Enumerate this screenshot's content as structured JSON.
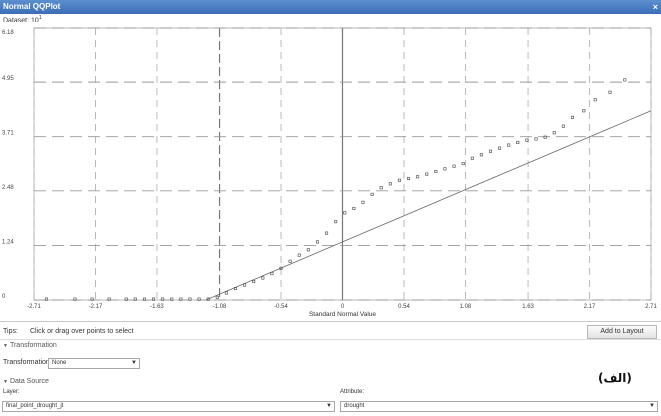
{
  "window": {
    "title": "Normal QQPlot",
    "close_glyph": "×"
  },
  "plot_header": {
    "dataset_label": "Dataset: 10",
    "exponent": "1"
  },
  "chart_data": {
    "type": "scatter",
    "xlabel": "Standard Normal Value",
    "ylabel": "",
    "xlim": [
      -2.71,
      2.71
    ],
    "ylim": [
      0,
      6.18
    ],
    "x_ticks": [
      -2.71,
      -2.17,
      -1.63,
      -1.08,
      -0.54,
      0,
      0.54,
      1.08,
      1.63,
      2.17,
      2.71
    ],
    "x_tick_labels": [
      "-2.71",
      "-2.17",
      "-1.63",
      "-1.08",
      "-0.54",
      "0",
      "0.54",
      "1.08",
      "1.63",
      "2.17",
      "2.71"
    ],
    "y_ticks": [
      0,
      1.24,
      2.48,
      3.71,
      4.95,
      6.18
    ],
    "y_tick_labels": [
      "0",
      "1.24",
      "2.48",
      "3.71",
      "4.95",
      "6.18"
    ],
    "grid": true,
    "reference_line": {
      "x": [
        -1.2,
        2.71
      ],
      "y": [
        0,
        4.3
      ]
    },
    "series": [
      {
        "x": [
          -2.6,
          -2.35,
          -2.2,
          -2.05,
          -1.9,
          -1.82,
          -1.74,
          -1.66,
          -1.58,
          -1.5,
          -1.42,
          -1.34,
          -1.26,
          -1.18,
          -1.1,
          -1.02,
          -0.94,
          -0.86,
          -0.78,
          -0.7,
          -0.62,
          -0.54,
          -0.46,
          -0.38,
          -0.3,
          -0.22,
          -0.14,
          -0.06,
          0.02,
          0.1,
          0.18,
          0.26,
          0.34,
          0.42,
          0.5,
          0.58,
          0.66,
          0.74,
          0.82,
          0.9,
          0.98,
          1.06,
          1.14,
          1.22,
          1.3,
          1.38,
          1.46,
          1.54,
          1.62,
          1.7,
          1.78,
          1.86,
          1.94,
          2.02,
          2.12,
          2.22,
          2.35,
          2.48
        ],
        "y": [
          0.02,
          0.02,
          0.02,
          0.02,
          0.02,
          0.02,
          0.02,
          0.02,
          0.02,
          0.02,
          0.02,
          0.02,
          0.02,
          0.02,
          0.06,
          0.16,
          0.26,
          0.34,
          0.42,
          0.5,
          0.6,
          0.72,
          0.88,
          1.02,
          1.14,
          1.32,
          1.52,
          1.78,
          1.98,
          2.08,
          2.22,
          2.4,
          2.55,
          2.64,
          2.72,
          2.76,
          2.8,
          2.86,
          2.92,
          2.98,
          3.04,
          3.1,
          3.22,
          3.3,
          3.38,
          3.45,
          3.52,
          3.58,
          3.63,
          3.66,
          3.7,
          3.8,
          3.95,
          4.15,
          4.3,
          4.55,
          4.72,
          5.0
        ]
      }
    ]
  },
  "tips": {
    "label": "Tips:",
    "text": "Click or drag over points to select"
  },
  "add_to_layout": "Add to Layout",
  "transformation_section": {
    "header": "Transformation",
    "field_label": "Transformation:",
    "value": "None"
  },
  "data_source_section": {
    "header": "Data Source",
    "layer_label": "Layer:",
    "layer_value": "final_point_drought_jt",
    "attribute_label": "Attribute:",
    "attribute_value": "drought"
  },
  "caption": "(الف)"
}
